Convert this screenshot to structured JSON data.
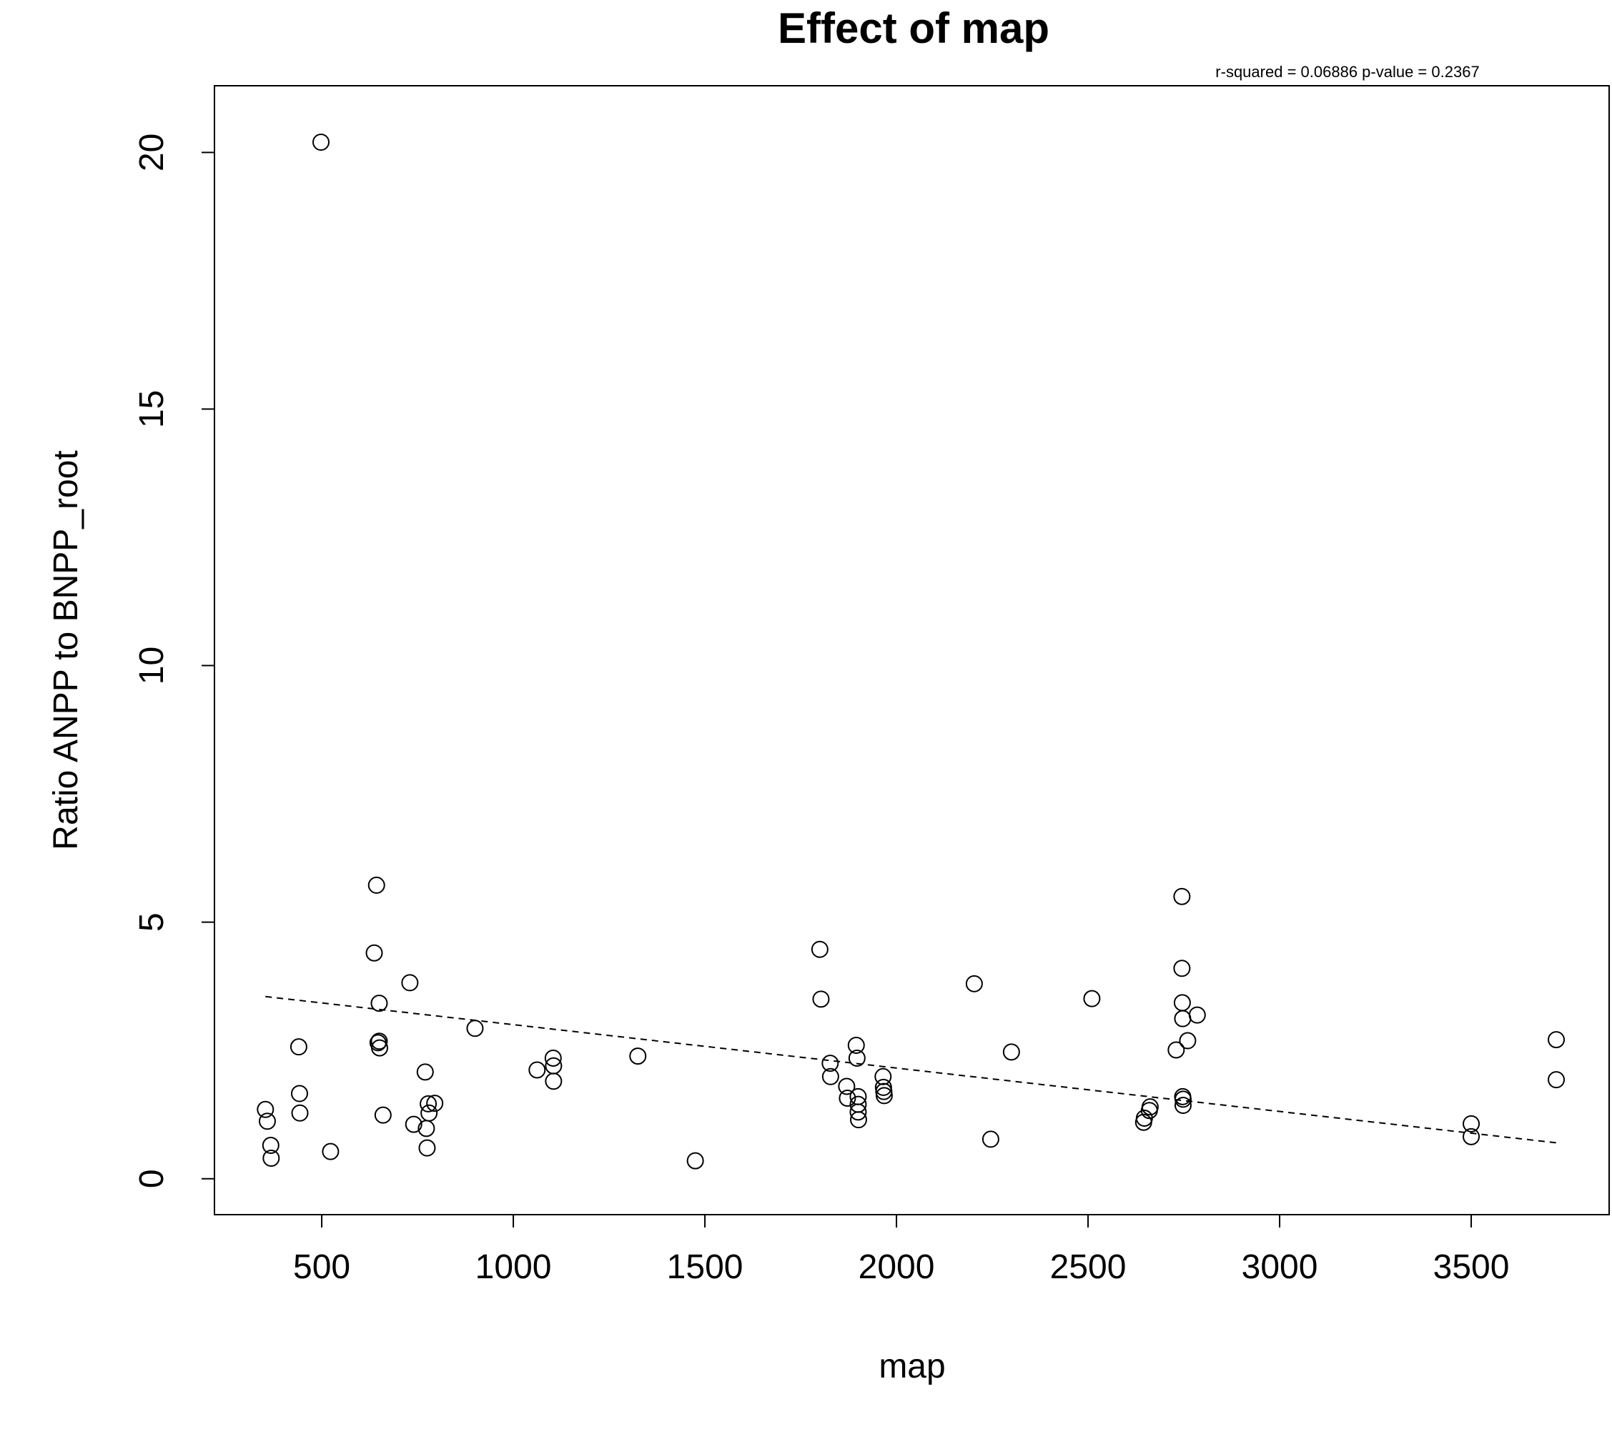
{
  "chart_data": {
    "type": "scatter",
    "title": "Effect of map",
    "subtitle": "r-squared =  0.06886 p-value =  0.2367",
    "xlabel": "map",
    "ylabel": "Ratio ANPP to BNPP_root",
    "xlim": [
      220,
      3860
    ],
    "ylim": [
      -0.7,
      21.3
    ],
    "xticks": [
      500,
      1000,
      1500,
      2000,
      2500,
      3000,
      3500
    ],
    "xtick_labels": [
      "500",
      "1000",
      "1500",
      "2000",
      "2500",
      "3000",
      "3500"
    ],
    "yticks": [
      0,
      5,
      10,
      15,
      20
    ],
    "ytick_labels": [
      "0",
      "5",
      "10",
      "15",
      "20"
    ],
    "grid": false,
    "legend": "none",
    "point_style": "open-circle",
    "points": [
      {
        "x": 498,
        "y": 20.2
      },
      {
        "x": 353,
        "y": 1.35
      },
      {
        "x": 358,
        "y": 1.12
      },
      {
        "x": 367,
        "y": 0.65
      },
      {
        "x": 368,
        "y": 0.4
      },
      {
        "x": 440,
        "y": 2.57
      },
      {
        "x": 442,
        "y": 1.66
      },
      {
        "x": 443,
        "y": 1.28
      },
      {
        "x": 523,
        "y": 0.53
      },
      {
        "x": 637,
        "y": 4.4
      },
      {
        "x": 643,
        "y": 5.72
      },
      {
        "x": 647,
        "y": 2.65
      },
      {
        "x": 650,
        "y": 3.42
      },
      {
        "x": 650,
        "y": 2.68
      },
      {
        "x": 651,
        "y": 2.55
      },
      {
        "x": 660,
        "y": 1.24
      },
      {
        "x": 730,
        "y": 3.82
      },
      {
        "x": 740,
        "y": 1.06
      },
      {
        "x": 770,
        "y": 2.08
      },
      {
        "x": 773,
        "y": 0.98
      },
      {
        "x": 775,
        "y": 0.6
      },
      {
        "x": 778,
        "y": 1.46
      },
      {
        "x": 780,
        "y": 1.28
      },
      {
        "x": 795,
        "y": 1.47
      },
      {
        "x": 900,
        "y": 2.93
      },
      {
        "x": 1062,
        "y": 2.12
      },
      {
        "x": 1104,
        "y": 2.35
      },
      {
        "x": 1105,
        "y": 2.2
      },
      {
        "x": 1105,
        "y": 1.9
      },
      {
        "x": 1325,
        "y": 2.39
      },
      {
        "x": 1475,
        "y": 0.35
      },
      {
        "x": 1800,
        "y": 4.47
      },
      {
        "x": 1803,
        "y": 3.5
      },
      {
        "x": 1827,
        "y": 2.25
      },
      {
        "x": 1828,
        "y": 1.99
      },
      {
        "x": 1870,
        "y": 1.8
      },
      {
        "x": 1872,
        "y": 1.57
      },
      {
        "x": 1895,
        "y": 2.6
      },
      {
        "x": 1897,
        "y": 2.35
      },
      {
        "x": 1900,
        "y": 1.6
      },
      {
        "x": 1900,
        "y": 1.45
      },
      {
        "x": 1900,
        "y": 1.3
      },
      {
        "x": 1901,
        "y": 1.15
      },
      {
        "x": 1965,
        "y": 1.99
      },
      {
        "x": 1966,
        "y": 1.78
      },
      {
        "x": 1967,
        "y": 1.7
      },
      {
        "x": 1968,
        "y": 1.62
      },
      {
        "x": 2203,
        "y": 3.8
      },
      {
        "x": 2246,
        "y": 0.77
      },
      {
        "x": 2300,
        "y": 2.47
      },
      {
        "x": 2510,
        "y": 3.51
      },
      {
        "x": 2645,
        "y": 1.1
      },
      {
        "x": 2647,
        "y": 1.18
      },
      {
        "x": 2660,
        "y": 1.33
      },
      {
        "x": 2662,
        "y": 1.4
      },
      {
        "x": 2730,
        "y": 2.51
      },
      {
        "x": 2745,
        "y": 5.5
      },
      {
        "x": 2745,
        "y": 4.1
      },
      {
        "x": 2746,
        "y": 3.43
      },
      {
        "x": 2747,
        "y": 3.12
      },
      {
        "x": 2747,
        "y": 1.6
      },
      {
        "x": 2748,
        "y": 1.55
      },
      {
        "x": 2748,
        "y": 1.43
      },
      {
        "x": 2760,
        "y": 2.69
      },
      {
        "x": 2785,
        "y": 3.19
      },
      {
        "x": 3500,
        "y": 1.07
      },
      {
        "x": 3500,
        "y": 0.82
      },
      {
        "x": 3722,
        "y": 2.71
      },
      {
        "x": 3722,
        "y": 1.93
      }
    ],
    "fit_line": {
      "style": "dashed",
      "x": [
        353,
        3722
      ],
      "y": [
        3.55,
        0.7
      ]
    }
  }
}
